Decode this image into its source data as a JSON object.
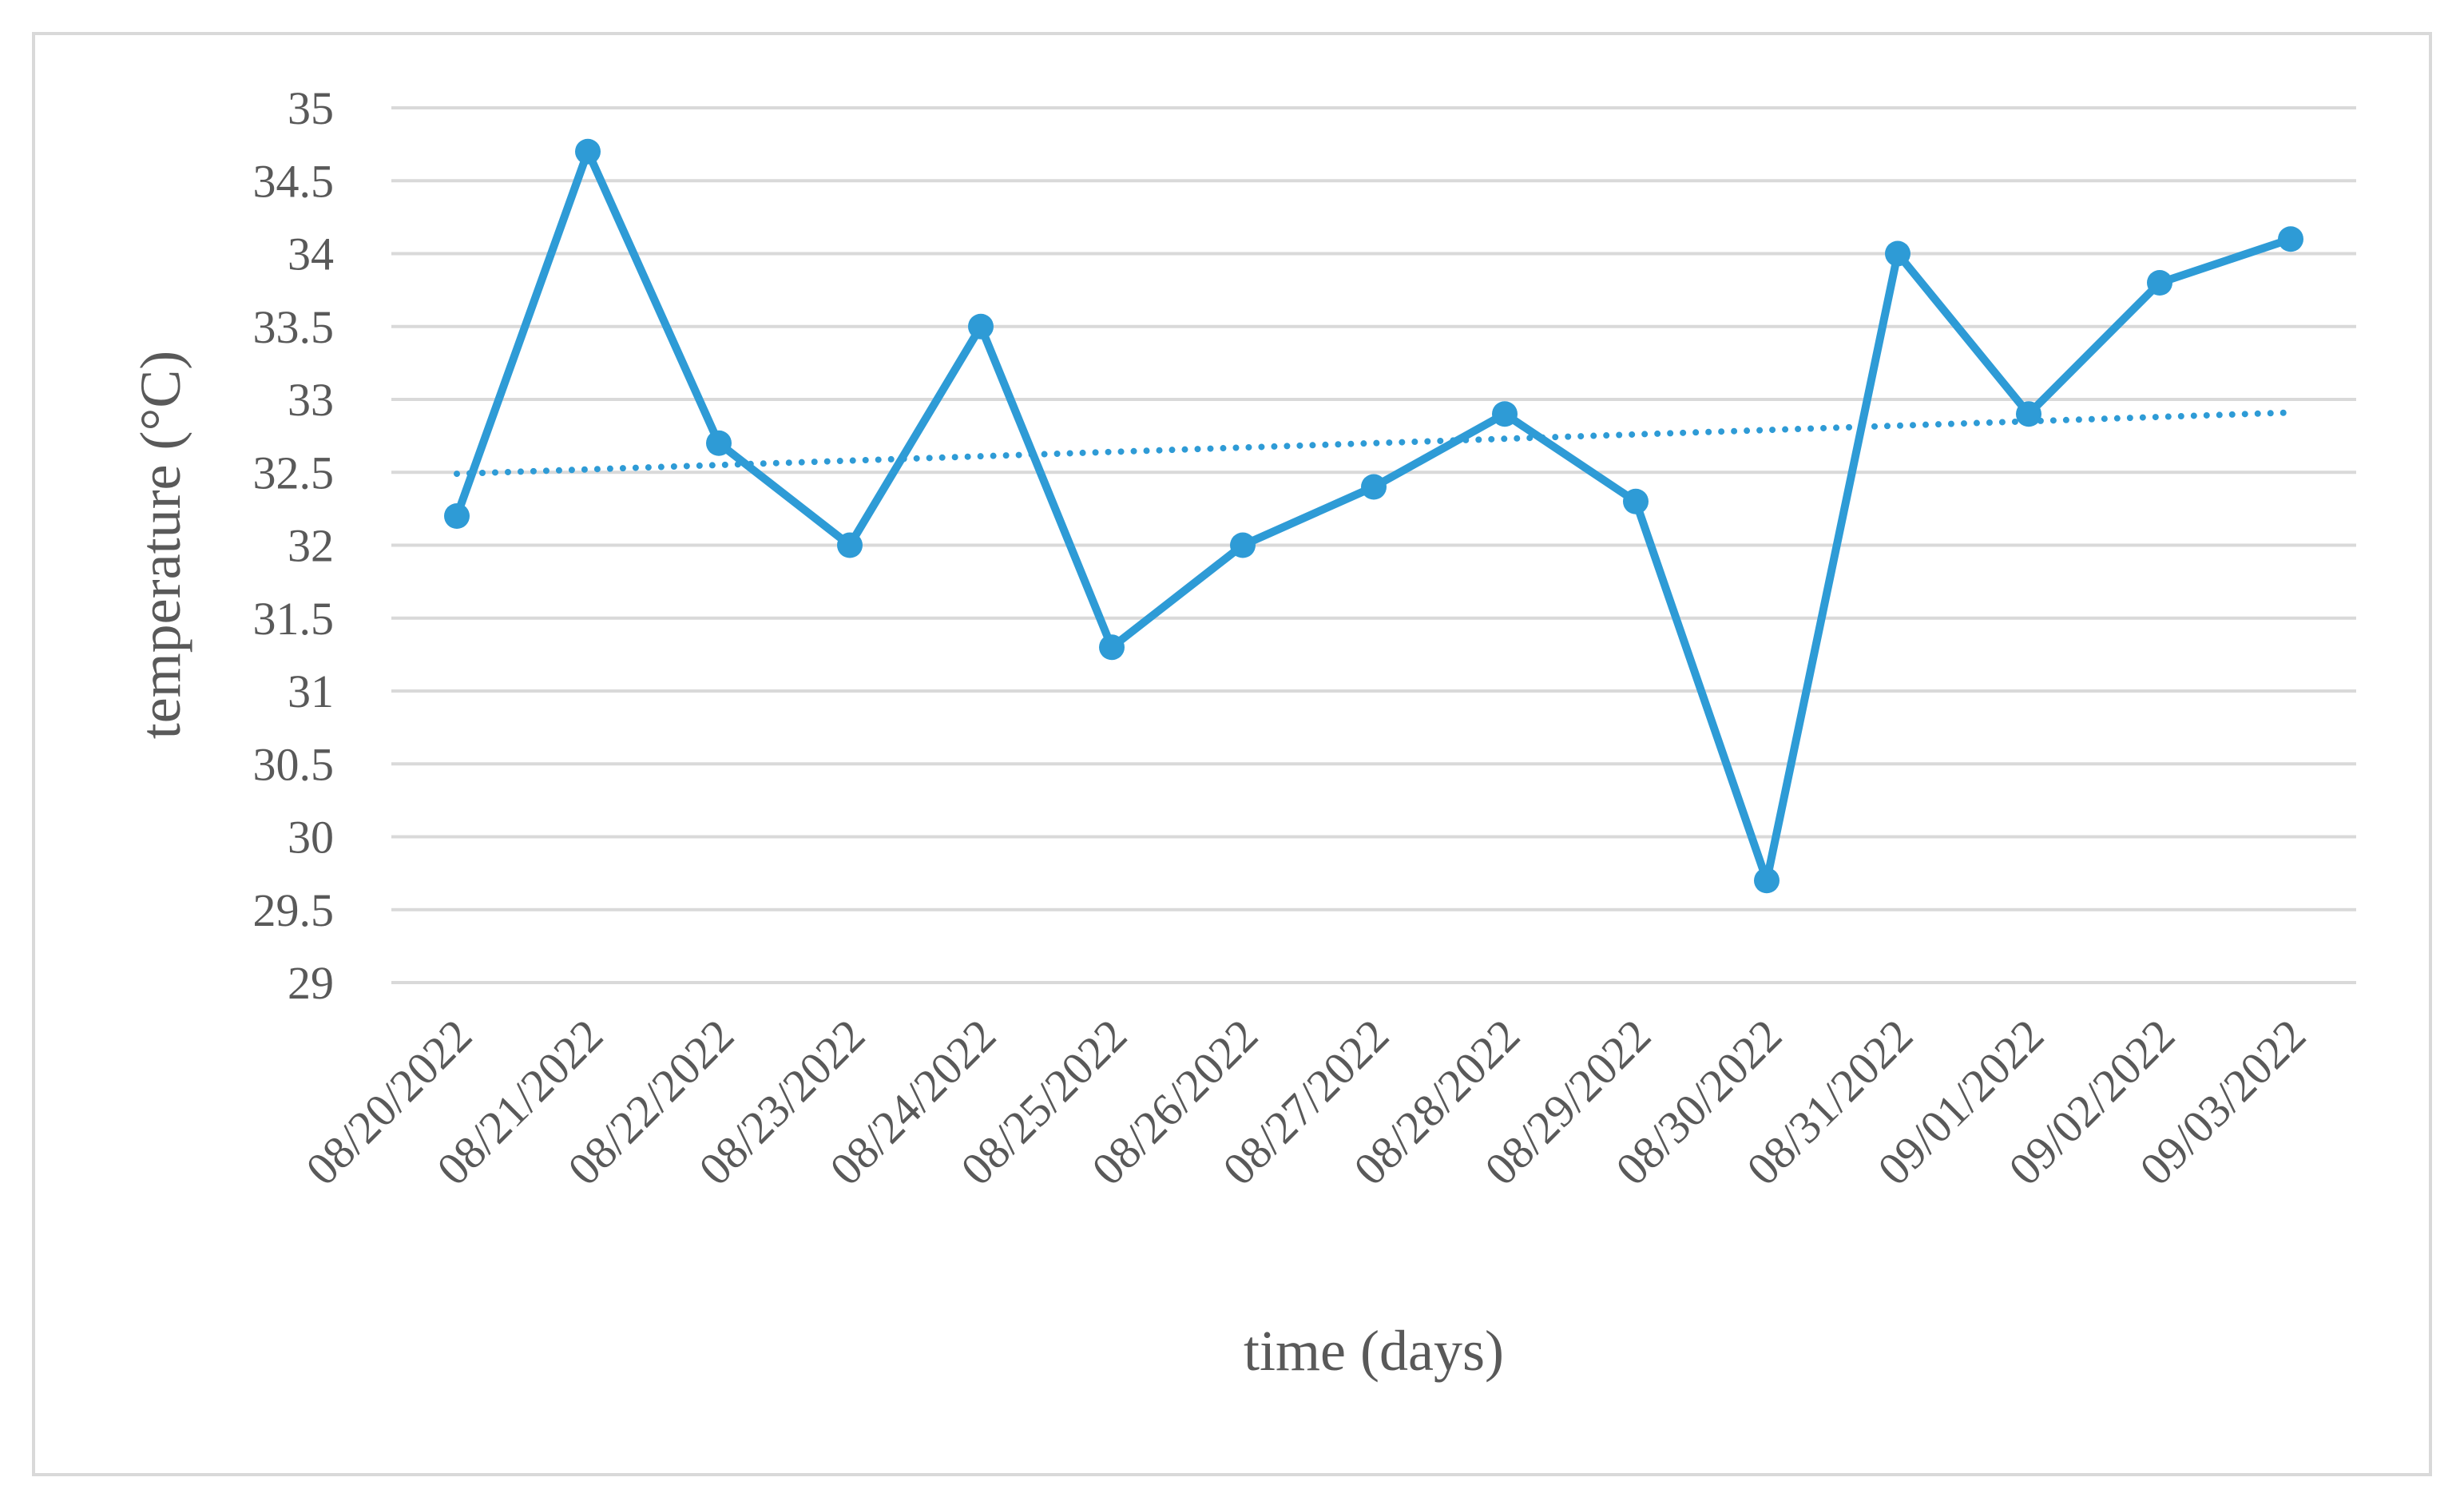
{
  "chart_data": {
    "type": "line",
    "title": "",
    "xlabel": "time (days)",
    "ylabel": "temperature (°C)",
    "ylim": [
      29,
      35
    ],
    "yticks": [
      "29",
      "29.5",
      "30",
      "30.5",
      "31",
      "31.5",
      "32",
      "32.5",
      "33",
      "33.5",
      "34",
      "34.5",
      "35"
    ],
    "grid": "horizontal",
    "categories": [
      "08/20/2022",
      "08/21/2022",
      "08/22/2022",
      "08/23/2022",
      "08/24/2022",
      "08/25/2022",
      "08/26/2022",
      "08/27/2022",
      "08/28/2022",
      "08/29/2022",
      "08/30/2022",
      "08/31/2022",
      "09/01/2022",
      "09/02/2022",
      "09/03/2022"
    ],
    "series": [
      {
        "values": [
          32.2,
          34.7,
          32.7,
          32.0,
          33.5,
          31.3,
          32.0,
          32.4,
          32.9,
          32.3,
          29.7,
          34.0,
          32.9,
          33.8,
          34.1
        ],
        "color": "#2e9bd6",
        "marker": "circle"
      }
    ],
    "trendline": {
      "type": "linear",
      "style": "dotted",
      "color": "#2e9bd6",
      "start": 32.49,
      "end": 32.91
    }
  }
}
